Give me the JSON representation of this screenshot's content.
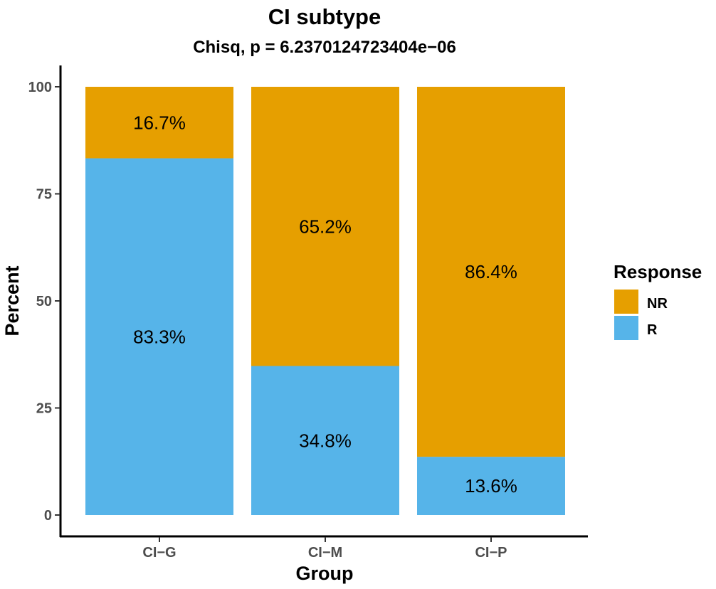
{
  "chart_data": {
    "type": "bar",
    "stacked": true,
    "title": "CI subtype",
    "subtitle": "Chisq, p = 6.2370124723404e−06",
    "xlabel": "Group",
    "ylabel": "Percent",
    "ylim": [
      0,
      100
    ],
    "yticks": [
      0,
      25,
      50,
      75,
      100
    ],
    "categories": [
      "CI−G",
      "CI−M",
      "CI−P"
    ],
    "series": [
      {
        "name": "R",
        "color": "#56B4E9",
        "values": [
          83.3,
          34.8,
          13.6
        ],
        "labels": [
          "83.3%",
          "34.8%",
          "13.6%"
        ]
      },
      {
        "name": "NR",
        "color": "#E69F00",
        "values": [
          16.7,
          65.2,
          86.4
        ],
        "labels": [
          "16.7%",
          "65.2%",
          "86.4%"
        ]
      }
    ],
    "legend": {
      "title": "Response",
      "placement": "right",
      "entries": [
        {
          "label": "NR",
          "color": "#E69F00"
        },
        {
          "label": "R",
          "color": "#56B4E9"
        }
      ]
    },
    "grid": false
  }
}
